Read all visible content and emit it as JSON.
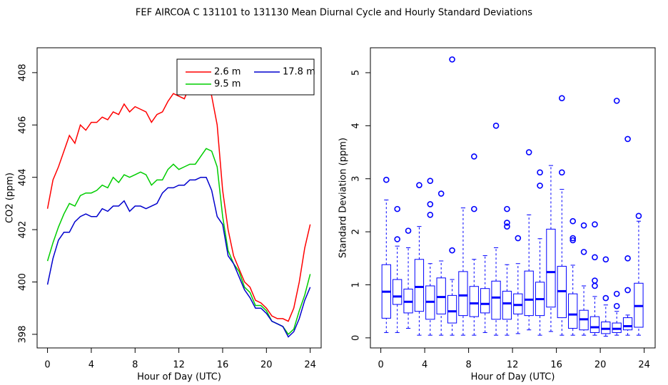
{
  "title": "FEF   AIRCOA C   131101 to 131130   Mean Diurnal Cycle and Hourly Standard Deviations",
  "chart_data": [
    {
      "type": "line",
      "xlabel": "Hour of Day (UTC)",
      "ylabel": "CO2 (ppm)",
      "xlim": [
        -0.95,
        25.0
      ],
      "ylim": [
        397.48,
        408.95
      ],
      "xticks": [
        0,
        4,
        8,
        12,
        16,
        20,
        24
      ],
      "yticks": [
        398,
        400,
        402,
        404,
        406,
        408
      ],
      "legend": "topright",
      "x": [
        0,
        0.5,
        1,
        1.5,
        2,
        2.5,
        3,
        3.5,
        4,
        4.5,
        5,
        5.5,
        6,
        6.5,
        7,
        7.5,
        8,
        8.5,
        9,
        9.5,
        10,
        10.5,
        11,
        11.5,
        12,
        12.5,
        13,
        13.5,
        14,
        14.5,
        15,
        15.5,
        16,
        16.5,
        17,
        17.5,
        18,
        18.5,
        19,
        19.5,
        20,
        20.5,
        21,
        21.5,
        22,
        22.5,
        23,
        23.5,
        24
      ],
      "series": [
        {
          "name": "2.6 m",
          "color": "#ff0000",
          "values": [
            402.8,
            403.9,
            404.4,
            405.0,
            405.6,
            405.3,
            406.0,
            405.8,
            406.1,
            406.1,
            406.3,
            406.2,
            406.5,
            406.4,
            406.8,
            406.5,
            406.7,
            406.6,
            406.5,
            406.1,
            406.4,
            406.5,
            406.9,
            407.2,
            407.1,
            407.0,
            407.5,
            407.2,
            407.6,
            408.1,
            407.1,
            406.0,
            403.5,
            402.0,
            401.0,
            400.5,
            400.0,
            399.8,
            399.3,
            399.2,
            399.0,
            398.7,
            398.6,
            398.6,
            398.5,
            399.0,
            400.0,
            401.3,
            402.2
          ]
        },
        {
          "name": "9.5 m",
          "color": "#00cd00",
          "values": [
            400.8,
            401.5,
            402.1,
            402.6,
            403.0,
            402.9,
            403.3,
            403.4,
            403.4,
            403.5,
            403.7,
            403.6,
            404.0,
            403.8,
            404.1,
            404.0,
            404.1,
            404.2,
            404.1,
            403.7,
            403.9,
            403.9,
            404.3,
            404.5,
            404.3,
            404.4,
            404.5,
            404.5,
            404.8,
            405.1,
            405.0,
            404.4,
            402.5,
            401.2,
            400.7,
            400.4,
            399.8,
            399.6,
            399.1,
            399.1,
            398.9,
            398.5,
            398.4,
            398.3,
            398.0,
            398.2,
            398.9,
            399.5,
            400.3
          ]
        },
        {
          "name": "17.8 m",
          "color": "#0000cd",
          "values": [
            399.9,
            400.9,
            401.6,
            401.9,
            401.9,
            402.3,
            402.5,
            402.6,
            402.5,
            402.5,
            402.8,
            402.7,
            402.9,
            402.9,
            403.1,
            402.7,
            402.9,
            402.9,
            402.8,
            402.9,
            403.0,
            403.4,
            403.6,
            403.6,
            403.7,
            403.7,
            403.9,
            403.9,
            404.0,
            404.0,
            403.5,
            402.5,
            402.2,
            401.0,
            400.7,
            400.2,
            399.7,
            399.4,
            399.0,
            399.0,
            398.8,
            398.5,
            398.4,
            398.3,
            397.9,
            398.1,
            398.6,
            399.3,
            399.8
          ]
        }
      ]
    },
    {
      "type": "box",
      "xlabel": "Hour of Day (UTC)",
      "ylabel": "Standard Deviation (ppm)",
      "xlim": [
        -0.95,
        25.0
      ],
      "ylim": [
        -0.19,
        5.47
      ],
      "xticks": [
        0,
        4,
        8,
        12,
        16,
        20,
        24
      ],
      "yticks": [
        0,
        1,
        2,
        3,
        4,
        5
      ],
      "color": "#0000ff",
      "x": [
        0.5,
        1.5,
        2.5,
        3.5,
        4.5,
        5.5,
        6.5,
        7.5,
        8.5,
        9.5,
        10.5,
        11.5,
        12.5,
        13.5,
        14.5,
        15.5,
        16.5,
        17.5,
        18.5,
        19.5,
        20.5,
        21.5,
        22.5,
        23.5
      ],
      "low": [
        0.1,
        0.1,
        0.18,
        0.05,
        0.05,
        0.05,
        0.05,
        0.05,
        0.05,
        0.1,
        0.05,
        0.05,
        0.08,
        0.15,
        0.05,
        0.12,
        0.05,
        0.05,
        0.05,
        0.05,
        0.03,
        0.05,
        0.05,
        0.05
      ],
      "q1": [
        0.37,
        0.63,
        0.47,
        0.5,
        0.35,
        0.45,
        0.28,
        0.42,
        0.4,
        0.47,
        0.35,
        0.35,
        0.45,
        0.42,
        0.42,
        0.58,
        0.38,
        0.18,
        0.15,
        0.1,
        0.08,
        0.1,
        0.15,
        0.2
      ],
      "median": [
        0.87,
        0.78,
        0.68,
        0.96,
        0.68,
        0.77,
        0.5,
        0.8,
        0.65,
        0.64,
        0.76,
        0.65,
        0.62,
        0.72,
        0.73,
        1.24,
        0.88,
        0.44,
        0.35,
        0.2,
        0.17,
        0.17,
        0.22,
        0.6
      ],
      "q3": [
        1.38,
        1.1,
        0.92,
        1.48,
        0.98,
        1.13,
        0.8,
        1.25,
        0.97,
        0.93,
        1.07,
        0.88,
        0.83,
        1.26,
        1.05,
        2.05,
        1.35,
        0.83,
        0.52,
        0.4,
        0.3,
        0.28,
        0.38,
        1.03
      ],
      "high": [
        2.6,
        1.73,
        1.7,
        2.1,
        1.4,
        1.45,
        1.1,
        2.45,
        1.48,
        1.55,
        1.7,
        1.38,
        1.4,
        2.32,
        1.87,
        3.25,
        2.8,
        1.37,
        0.98,
        0.78,
        0.62,
        0.5,
        0.43,
        2.2
      ],
      "outliers": [
        [
          2.98
        ],
        [
          1.86,
          2.43
        ],
        [
          2.02
        ],
        [
          2.88
        ],
        [
          2.32,
          2.52,
          2.96
        ],
        [
          2.72
        ],
        [
          1.65,
          5.25
        ],
        [],
        [
          2.43,
          3.42
        ],
        [],
        [
          4.0
        ],
        [
          2.1,
          2.17,
          2.43
        ],
        [
          1.88
        ],
        [
          3.5
        ],
        [
          2.87,
          3.12
        ],
        [],
        [
          3.12,
          4.52
        ],
        [
          1.84,
          1.88,
          2.2
        ],
        [
          1.62,
          2.12
        ],
        [
          0.98,
          1.08,
          1.52,
          2.14
        ],
        [
          0.75,
          1.48
        ],
        [
          0.6,
          0.83,
          4.47
        ],
        [
          0.9,
          1.5,
          3.75
        ],
        [
          2.3
        ]
      ]
    }
  ]
}
